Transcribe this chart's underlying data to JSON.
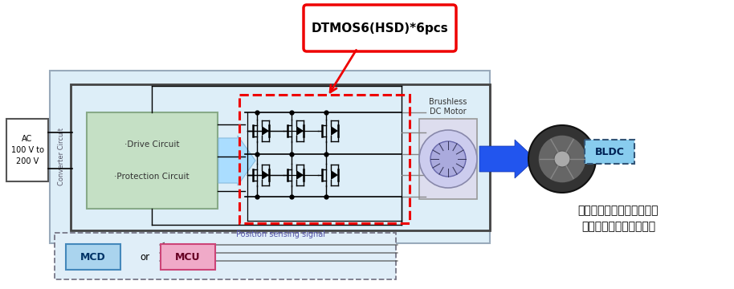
{
  "callout_text": "DTMOS6(HSD)*6pcs",
  "brushless_label": "Brushless\nDC Motor",
  "bldc_label": "BLDC",
  "ac_label": "AC\n100 V to\n200 V",
  "converter_label": "Converter Circuit",
  "drive_label": "·Drive Circuit\n\n·Protection Circuit",
  "position_label": "Position sensing signal",
  "mcd_label": "MCD",
  "or_label": "or",
  "mcu_label": "MCU",
  "chinese_line1": "家用电器风扇直流无刷电机",
  "chinese_line2": "（例如空调室外机风扇）",
  "main_bg_color": "#ddeef8",
  "drive_box_color": "#c5e0c5",
  "drive_box_edge": "#88aa88",
  "red_edge": "#ee0000",
  "blue_arrow_color": "#2255ee",
  "light_arrow_color": "#aaddff",
  "mcd_fill": "#aad4ee",
  "mcd_edge": "#4488bb",
  "mcu_fill": "#f0aac8",
  "mcu_edge": "#cc4477",
  "bldc_fill": "#88ccee",
  "bldc_edge": "#335577",
  "outer_edge": "#444444",
  "motor_outer": "#ccccee",
  "motor_inner": "#aaaadd"
}
